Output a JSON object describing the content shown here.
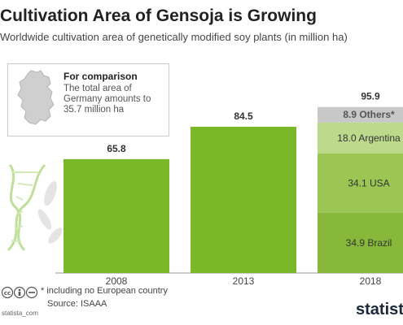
{
  "header": {
    "title": "Cultivation Area of Gensoja is Growing",
    "subtitle": "Worldwide cultivation area of genetically modified soy plants (in million ha)"
  },
  "comparison": {
    "title": "For comparison",
    "text": "The total area of Germany amounts to 35.7 million ha"
  },
  "chart_data": {
    "type": "bar",
    "categories": [
      "2008",
      "2013",
      "2018"
    ],
    "values": [
      65.8,
      84.5,
      95.9
    ],
    "value_labels": [
      "65.8",
      "84.5",
      "95.9"
    ],
    "stacked_2018": [
      {
        "label": "34.9 Brazil",
        "value": 34.9,
        "color": "#88b83a"
      },
      {
        "label": "34.1 USA",
        "value": 34.1,
        "color": "#9bc653"
      },
      {
        "label": "18.0 Argentina",
        "value": 18.0,
        "color": "#bcd98c"
      },
      {
        "label": "8.9 Others*",
        "value": 8.9,
        "color": "#c8c8c8"
      }
    ],
    "bar_color": "#7ab82a",
    "ylim": [
      0,
      100
    ],
    "grid": false,
    "legend": "none"
  },
  "footer": {
    "footnote": "* including no European country",
    "source": "Source: ISAAA",
    "license": "statista_com",
    "brand": "statista"
  },
  "icons": [
    "germany-map-icon",
    "dna-icon",
    "cc-icons"
  ]
}
